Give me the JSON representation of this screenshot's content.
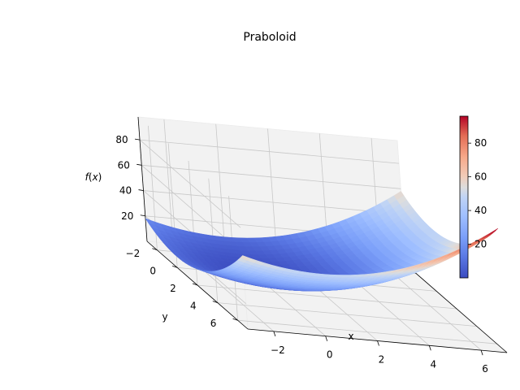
{
  "chart_data": {
    "type": "surface3d",
    "title": "Praboloid",
    "function": "x^2 + y^2",
    "xlabel": "x",
    "ylabel": "y",
    "zlabel": "f(x)",
    "zlabel_parts": {
      "f": "f",
      "open": "(",
      "x": "x",
      "close": ")"
    },
    "x_range": [
      -3,
      7
    ],
    "y_range": [
      -3,
      7
    ],
    "z_range": [
      0,
      98
    ],
    "x_ticks": [
      {
        "v": -2,
        "label": "−2"
      },
      {
        "v": 0,
        "label": "0"
      },
      {
        "v": 2,
        "label": "2"
      },
      {
        "v": 4,
        "label": "4"
      },
      {
        "v": 6,
        "label": "6"
      }
    ],
    "y_ticks": [
      {
        "v": -2,
        "label": "−2"
      },
      {
        "v": 0,
        "label": "0"
      },
      {
        "v": 2,
        "label": "2"
      },
      {
        "v": 4,
        "label": "4"
      },
      {
        "v": 6,
        "label": "6"
      }
    ],
    "z_ticks": [
      {
        "v": 20,
        "label": "20"
      },
      {
        "v": 40,
        "label": "40"
      },
      {
        "v": 60,
        "label": "60"
      },
      {
        "v": 80,
        "label": "80"
      }
    ],
    "colormap": "coolwarm",
    "colorbar": {
      "min": 0,
      "max": 96,
      "ticks": [
        {
          "v": 20,
          "label": "20"
        },
        {
          "v": 40,
          "label": "40"
        },
        {
          "v": 60,
          "label": "60"
        },
        {
          "v": 80,
          "label": "80"
        }
      ]
    }
  },
  "colors": {
    "pane": "#f2f2f2",
    "pane_edge": "#ebebeb",
    "grid": "#c8c8c8",
    "axis": "#000000",
    "cmap_low": "#3b4cc0",
    "cmap_mid": "#dddddd",
    "cmap_high": "#b40426"
  }
}
